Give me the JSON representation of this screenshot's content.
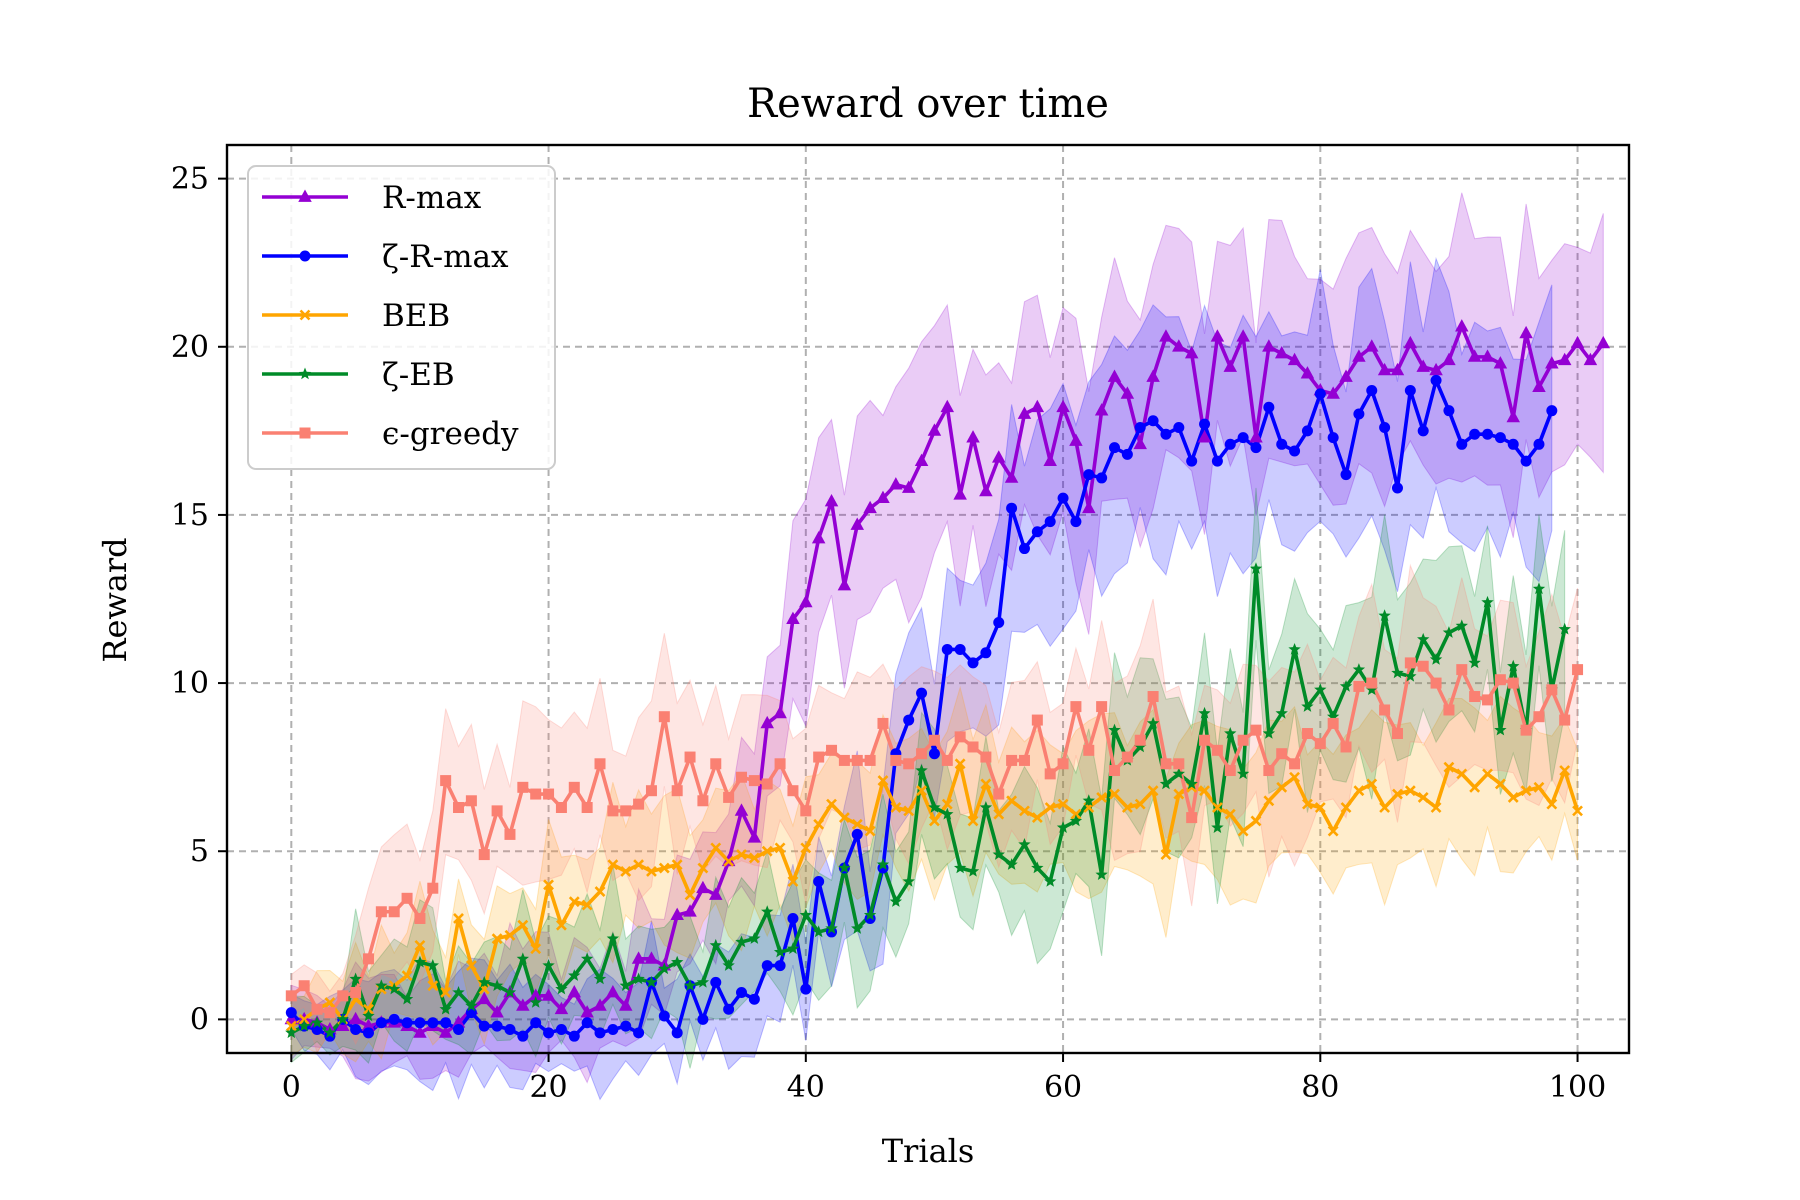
{
  "chart_data": {
    "type": "line",
    "title": "Reward over time",
    "xlabel": "Trials",
    "ylabel": "Reward",
    "xlim": [
      -5,
      104
    ],
    "ylim": [
      -1,
      26
    ],
    "xticks": [
      0,
      20,
      40,
      60,
      80,
      100
    ],
    "yticks": [
      0,
      5,
      10,
      15,
      20,
      25
    ],
    "grid": true,
    "grid_style": "dashed",
    "legend_position": "upper-left",
    "series": [
      {
        "name": "R-max",
        "color": "#9400D3",
        "marker": "triangle",
        "values": [
          0.0,
          0.0,
          -0.1,
          -0.3,
          -0.2,
          0.0,
          -0.2,
          -0.1,
          -0.1,
          -0.2,
          -0.4,
          -0.2,
          -0.4,
          -0.1,
          0.3,
          0.6,
          0.2,
          0.8,
          0.4,
          0.7,
          0.7,
          0.3,
          0.8,
          0.2,
          0.4,
          0.8,
          0.4,
          1.8,
          1.8,
          1.6,
          3.1,
          3.2,
          3.9,
          3.7,
          4.7,
          6.2,
          5.4,
          8.8,
          9.1,
          11.9,
          12.4,
          14.3,
          15.4,
          12.9,
          14.7,
          15.2,
          15.5,
          15.9,
          15.8,
          16.6,
          17.5,
          18.2,
          15.6,
          17.3,
          15.7,
          16.7,
          16.1,
          18.0,
          18.2,
          16.6,
          18.2,
          17.2,
          15.2,
          18.1,
          19.1,
          18.6,
          17.1,
          19.1,
          20.3,
          20.0,
          19.8,
          17.3,
          20.3,
          19.4,
          20.3,
          17.3,
          20.0,
          19.8,
          19.6,
          19.2,
          18.7,
          18.6,
          19.1,
          19.7,
          20.0,
          19.3,
          19.3,
          20.1,
          19.4,
          19.3,
          19.6,
          20.6,
          19.7,
          19.7,
          19.5,
          17.9,
          20.4,
          18.8,
          19.5,
          19.6,
          20.1,
          19.6,
          20.1
        ]
      },
      {
        "name": "ζ-R-max",
        "color": "#0000FF",
        "marker": "circle",
        "values": [
          0.2,
          -0.2,
          -0.3,
          -0.5,
          0.0,
          -0.3,
          -0.4,
          -0.1,
          0.0,
          -0.1,
          -0.1,
          -0.1,
          -0.1,
          -0.3,
          0.2,
          -0.2,
          -0.2,
          -0.3,
          -0.5,
          -0.1,
          -0.4,
          -0.3,
          -0.5,
          -0.1,
          -0.4,
          -0.3,
          -0.2,
          -0.4,
          1.1,
          0.1,
          -0.4,
          1.0,
          0.0,
          1.1,
          0.3,
          0.8,
          0.6,
          1.6,
          1.6,
          3.0,
          0.9,
          4.1,
          2.6,
          4.5,
          5.5,
          3.0,
          4.5,
          7.9,
          8.9,
          9.7,
          7.9,
          11.0,
          11.0,
          10.6,
          10.9,
          11.8,
          15.2,
          14.0,
          14.5,
          14.8,
          15.5,
          14.8,
          16.2,
          16.1,
          17.0,
          16.8,
          17.6,
          17.8,
          17.4,
          17.6,
          16.6,
          17.7,
          16.6,
          17.1,
          17.3,
          17.0,
          18.2,
          17.1,
          16.9,
          17.5,
          18.6,
          17.3,
          16.2,
          18.0,
          18.7,
          17.6,
          15.8,
          18.7,
          17.5,
          19.0,
          18.1,
          17.1,
          17.4,
          17.4,
          17.3,
          17.1,
          16.6,
          17.1,
          18.1
        ]
      },
      {
        "name": "BEB",
        "color": "#FFA500",
        "marker": "x",
        "values": [
          -0.2,
          0.0,
          0.3,
          0.5,
          0.0,
          0.6,
          0.3,
          0.9,
          1.0,
          1.3,
          2.2,
          1.0,
          0.8,
          3.0,
          1.6,
          0.9,
          2.4,
          2.5,
          2.8,
          2.1,
          4.0,
          2.8,
          3.5,
          3.4,
          3.8,
          4.6,
          4.4,
          4.6,
          4.4,
          4.5,
          4.6,
          3.7,
          4.5,
          5.1,
          4.7,
          4.9,
          4.8,
          5.0,
          5.1,
          4.1,
          5.1,
          5.8,
          6.4,
          6.0,
          5.8,
          5.6,
          7.1,
          6.3,
          6.2,
          6.8,
          5.9,
          6.4,
          7.6,
          5.9,
          7.0,
          6.1,
          6.5,
          6.2,
          6.0,
          6.3,
          6.4,
          6.1,
          6.3,
          6.6,
          6.7,
          6.3,
          6.4,
          6.8,
          4.9,
          6.7,
          6.9,
          6.8,
          6.3,
          6.1,
          5.6,
          5.9,
          6.5,
          6.9,
          7.2,
          6.4,
          6.3,
          5.6,
          6.3,
          6.8,
          7.0,
          6.3,
          6.7,
          6.8,
          6.6,
          6.3,
          7.5,
          7.3,
          6.9,
          7.3,
          7.0,
          6.6,
          6.8,
          6.9,
          6.4,
          7.4,
          6.2
        ]
      },
      {
        "name": "ζ-EB",
        "color": "#008B28",
        "marker": "star",
        "values": [
          -0.4,
          -0.2,
          -0.1,
          -0.4,
          0.0,
          1.2,
          0.1,
          1.0,
          0.9,
          0.6,
          1.7,
          1.6,
          0.3,
          0.8,
          0.4,
          1.1,
          1.0,
          0.8,
          1.8,
          0.5,
          1.6,
          0.9,
          1.3,
          1.8,
          1.2,
          2.4,
          1.0,
          1.2,
          1.1,
          1.5,
          1.7,
          1.0,
          1.1,
          2.2,
          1.6,
          2.3,
          2.4,
          3.2,
          2.0,
          2.1,
          3.1,
          2.6,
          2.7,
          4.5,
          2.7,
          3.1,
          4.6,
          3.5,
          4.1,
          7.4,
          6.3,
          6.1,
          4.5,
          4.4,
          6.3,
          4.9,
          4.6,
          5.2,
          4.5,
          4.1,
          5.7,
          5.9,
          6.5,
          4.3,
          8.6,
          7.7,
          8.1,
          8.8,
          7.0,
          7.3,
          7.0,
          9.1,
          5.7,
          8.5,
          7.3,
          13.4,
          8.5,
          9.1,
          11.0,
          9.3,
          9.8,
          9.0,
          9.9,
          10.4,
          9.8,
          12.0,
          10.3,
          10.2,
          11.3,
          10.7,
          11.5,
          11.7,
          10.6,
          12.4,
          8.6,
          10.5,
          8.6,
          12.8,
          9.8,
          11.6
        ]
      },
      {
        "name": "ϵ-greedy",
        "color": "#FA8072",
        "marker": "square",
        "values": [
          0.7,
          1.0,
          0.3,
          0.2,
          0.7,
          0.8,
          1.8,
          3.2,
          3.2,
          3.6,
          3.0,
          3.9,
          7.1,
          6.3,
          6.5,
          4.9,
          6.2,
          5.5,
          6.9,
          6.7,
          6.7,
          6.3,
          6.9,
          6.3,
          7.6,
          6.2,
          6.2,
          6.4,
          6.8,
          9.0,
          6.8,
          7.8,
          6.5,
          7.6,
          6.6,
          7.2,
          7.1,
          7.0,
          7.6,
          6.8,
          6.2,
          7.8,
          8.0,
          7.7,
          7.7,
          7.7,
          8.8,
          7.7,
          7.6,
          7.9,
          8.3,
          7.7,
          8.4,
          8.1,
          7.8,
          6.7,
          7.7,
          7.7,
          8.9,
          7.3,
          7.6,
          9.3,
          8.0,
          9.3,
          7.4,
          7.8,
          8.3,
          9.6,
          7.6,
          7.6,
          6.0,
          8.3,
          8.0,
          7.4,
          8.3,
          8.6,
          7.4,
          7.9,
          7.6,
          8.5,
          8.2,
          8.8,
          8.1,
          9.9,
          10.0,
          9.2,
          8.5,
          10.6,
          10.5,
          10.0,
          9.2,
          10.4,
          9.6,
          9.5,
          10.1,
          10.0,
          8.6,
          9.0,
          9.8,
          8.9,
          10.4
        ]
      }
    ]
  }
}
